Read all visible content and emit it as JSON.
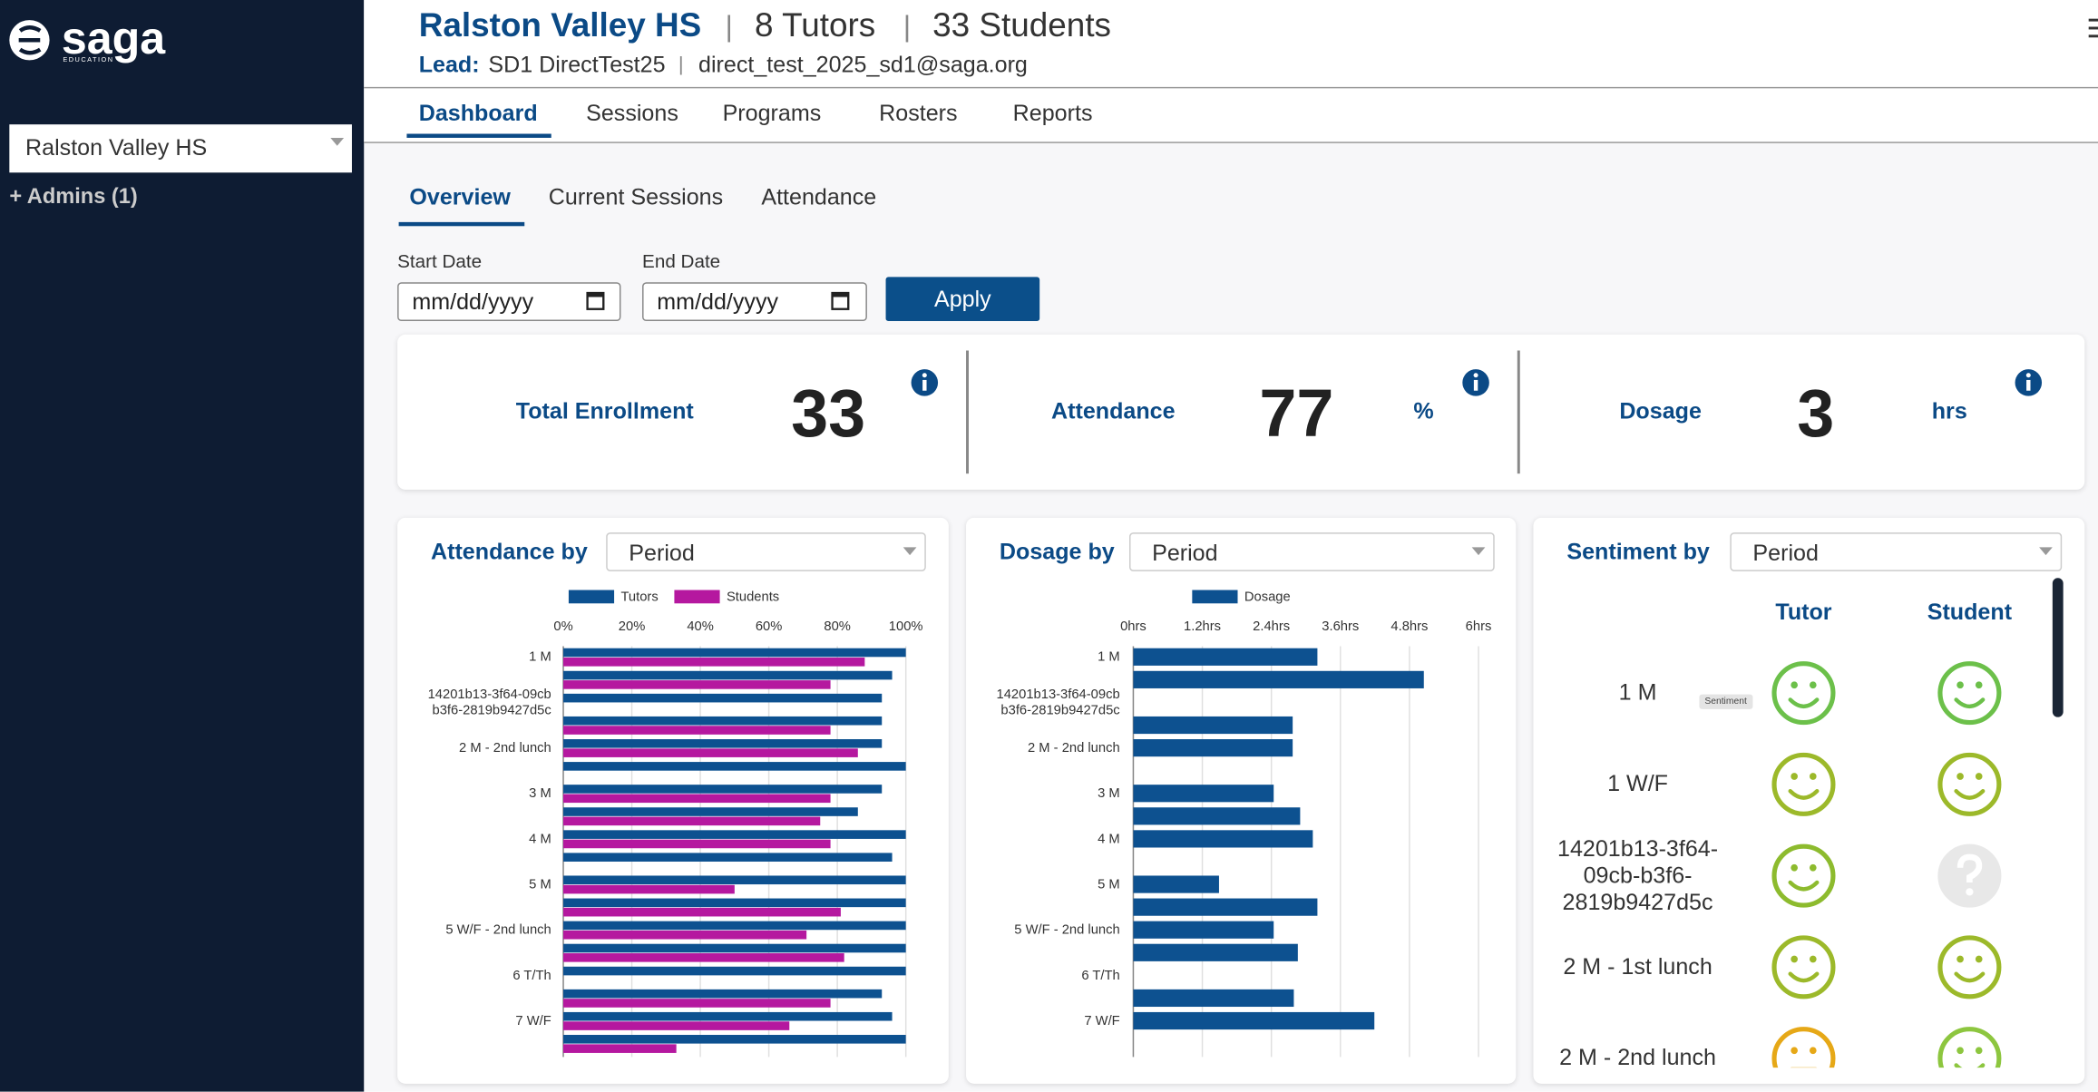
{
  "sidebar": {
    "logo": "saga",
    "logo_sub": "EDUCATION",
    "school_select": "Ralston Valley HS",
    "admins": "+ Admins (1)"
  },
  "header": {
    "school": "Ralston Valley HS",
    "separator": "|",
    "tutors": "8 Tutors",
    "students": "33 Students",
    "lead_label": "Lead:",
    "lead_name": "SD1 DirectTest25",
    "lead_email": "direct_test_2025_sd1@saga.org"
  },
  "nav": [
    "Dashboard",
    "Sessions",
    "Programs",
    "Rosters",
    "Reports"
  ],
  "subnav": [
    "Overview",
    "Current Sessions",
    "Attendance"
  ],
  "filters": {
    "start_label": "Start Date",
    "end_label": "End Date",
    "placeholder": "mm/dd/yyyy",
    "apply": "Apply"
  },
  "stats": [
    {
      "label": "Total Enrollment",
      "value": 33
    },
    {
      "label": "Attendance",
      "value": 77,
      "unit": "%"
    },
    {
      "label": "Dosage",
      "value": 3,
      "unit": "hrs"
    }
  ],
  "charts": [
    {
      "type": "bar",
      "orientation": "horizontal",
      "title": "Attendance by",
      "select": "Period",
      "categories": [
        "1 M",
        null,
        "14201b13-3f64-09cb b3f6-2819b9427d5c",
        null,
        "2 M - 2nd lunch",
        null,
        "3 M",
        null,
        "4 M",
        null,
        "5 M",
        null,
        "5 W/F - 2nd lunch",
        null,
        "6 T/Th",
        null,
        "7 W/F",
        null
      ],
      "series": [
        {
          "name": "Tutors",
          "color": "#0d5190",
          "values": [
            100,
            96,
            93,
            93,
            93,
            100,
            93,
            86,
            100,
            96,
            100,
            100,
            100,
            100,
            100,
            93,
            96,
            100
          ]
        },
        {
          "name": "Students",
          "color": "#b5189f",
          "values": [
            88,
            78,
            null,
            78,
            86,
            null,
            78,
            75,
            78,
            null,
            50,
            81,
            71,
            82,
            null,
            78,
            66,
            33
          ]
        }
      ],
      "xlim": [
        0,
        100
      ],
      "xticks": [
        {
          "value": 0,
          "label": "0%"
        },
        {
          "value": 20,
          "label": "20%"
        },
        {
          "value": 40,
          "label": "40%"
        },
        {
          "value": 60,
          "label": "60%"
        },
        {
          "value": 80,
          "label": "80%"
        },
        {
          "value": 100,
          "label": "100%"
        }
      ],
      "grid": true
    },
    {
      "type": "bar",
      "orientation": "horizontal",
      "title": "Dosage by",
      "select": "Period",
      "categories": [
        "1 M",
        null,
        "14201b13-3f64-09cb b3f6-2819b9427d5c",
        null,
        "2 M - 2nd lunch",
        null,
        "3 M",
        null,
        "4 M",
        null,
        "5 M",
        null,
        "5 W/F - 2nd lunch",
        null,
        "6 T/Th",
        null,
        "7 W/F",
        null
      ],
      "series": [
        {
          "name": "Dosage",
          "color": "#0d5190",
          "values": [
            3.2,
            5.05,
            null,
            2.77,
            2.77,
            null,
            2.44,
            2.9,
            3.12,
            null,
            1.49,
            3.2,
            2.44,
            2.86,
            null,
            2.79,
            4.19,
            null
          ]
        }
      ],
      "xlim": [
        0,
        6
      ],
      "xticks": [
        {
          "value": 0,
          "label": "0hrs"
        },
        {
          "value": 1.2,
          "label": "1.2hrs"
        },
        {
          "value": 2.4,
          "label": "2.4hrs"
        },
        {
          "value": 3.6,
          "label": "3.6hrs"
        },
        {
          "value": 4.8,
          "label": "4.8hrs"
        },
        {
          "value": 6,
          "label": "6hrs"
        }
      ],
      "grid": true
    }
  ],
  "sentiment": {
    "title": "Sentiment by",
    "select": "Period",
    "columns": [
      "Tutor",
      "Student"
    ],
    "tooltip": "Sentiment",
    "rows": [
      {
        "label": "1 M",
        "tutor": {
          "mood": "happy",
          "color": "#6cc04a"
        },
        "student": {
          "mood": "happy",
          "color": "#6cc04a"
        }
      },
      {
        "label": "1 W/F",
        "tutor": {
          "mood": "happy",
          "color": "#9cb92a"
        },
        "student": {
          "mood": "happy",
          "color": "#9cb92a"
        }
      },
      {
        "label": "14201b13-3f64-09cb-b3f6-2819b9427d5c",
        "tutor": {
          "mood": "happy",
          "color": "#8dbb2e"
        },
        "student": {
          "mood": "unknown",
          "color": "#e8e8e8"
        }
      },
      {
        "label": "2 M - 1st lunch",
        "tutor": {
          "mood": "happy",
          "color": "#9cb92a"
        },
        "student": {
          "mood": "happy",
          "color": "#9cb92a"
        }
      },
      {
        "label": "2 M - 2nd lunch",
        "tutor": {
          "mood": "neutral",
          "color": "#e6a817"
        },
        "student": {
          "mood": "happy",
          "color": "#8dc63f"
        }
      }
    ]
  }
}
